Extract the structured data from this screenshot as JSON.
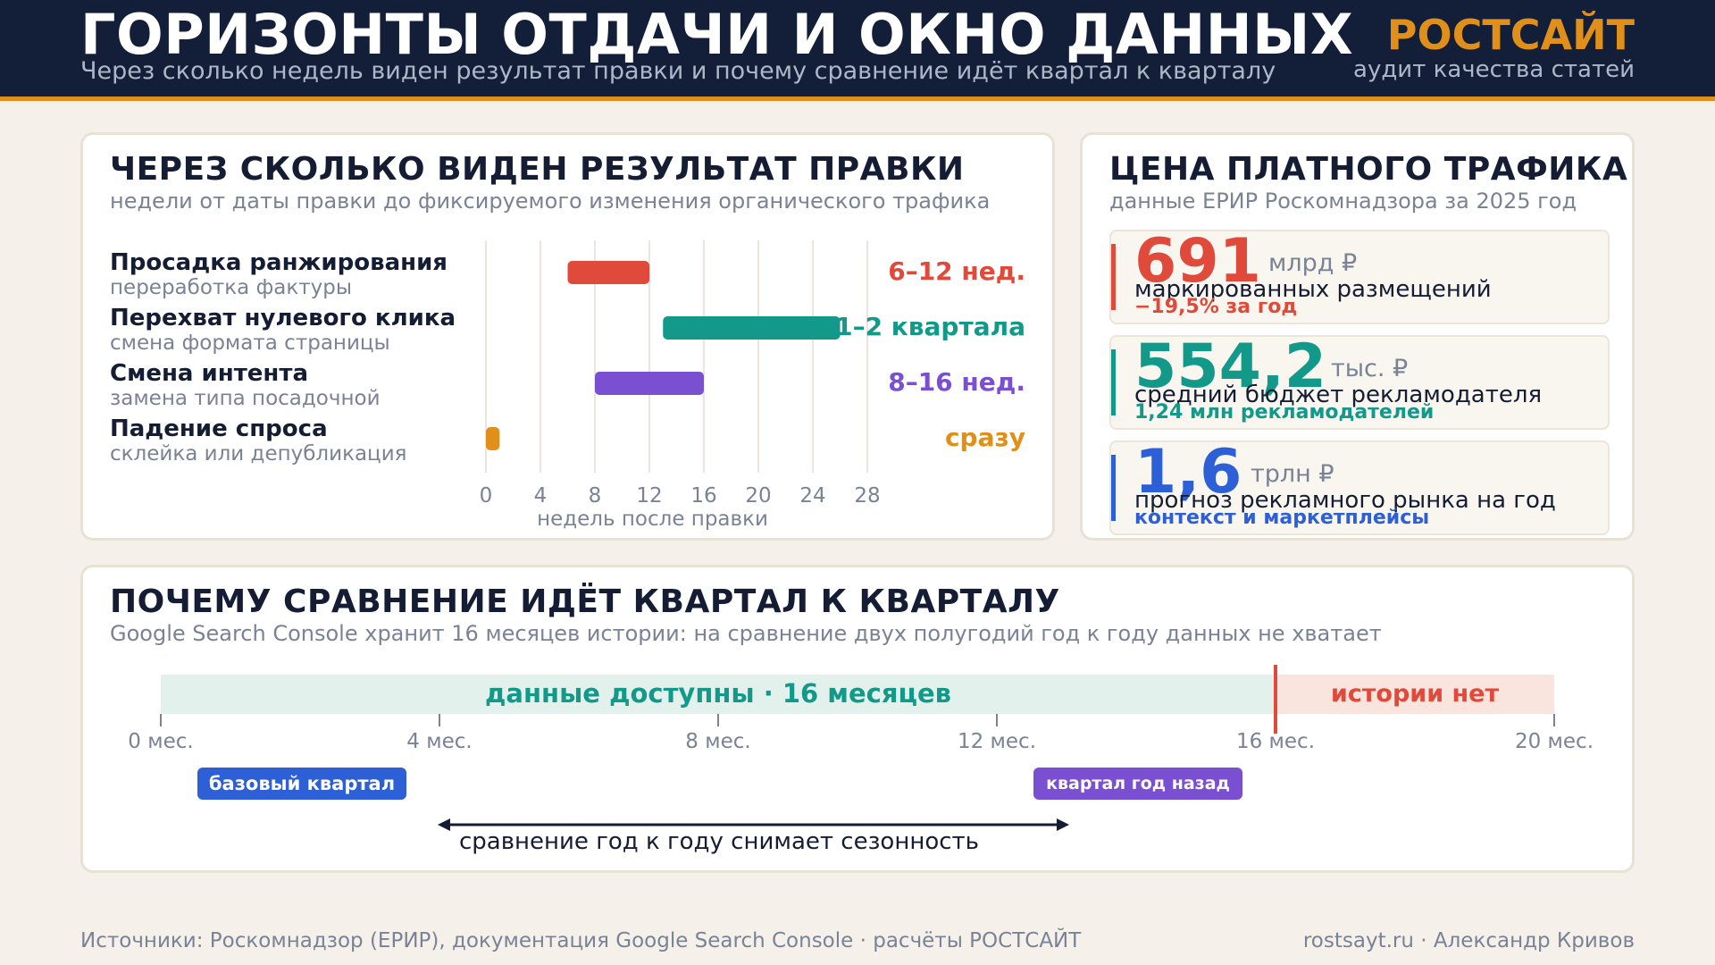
{
  "header": {
    "title": "ГОРИЗОНТЫ ОТДАЧИ И ОКНО ДАННЫХ",
    "subtitle": "Через сколько недель виден результат правки и почему сравнение идёт квартал к кварталу",
    "brand": "РОСТСАЙТ",
    "brand_sub": "аудит качества статей"
  },
  "lag_card": {
    "title": "ЧЕРЕЗ СКОЛЬКО ВИДЕН РЕЗУЛЬТАТ ПРАВКИ",
    "subtitle": "недели от даты правки до фиксируемого изменения органического трафика"
  },
  "price_card": {
    "title": "ЦЕНА ПЛАТНОГО ТРАФИКА",
    "subtitle": "данные ЕРИР Роскомнадзора за 2025 год",
    "stats": [
      {
        "value": "691",
        "unit": "млрд ₽",
        "desc": "маркированных размещений",
        "note": "−19,5% за год",
        "color": "#e04a3a"
      },
      {
        "value": "554,2",
        "unit": "тыс. ₽",
        "desc": "средний бюджет рекламодателя",
        "note": "1,24 млн рекламодателей",
        "color": "#12998a"
      },
      {
        "value": "1,6",
        "unit": "трлн ₽",
        "desc": "прогноз рекламного рынка на год",
        "note": "контекст и маркетплейсы",
        "color": "#2d5fd6"
      }
    ]
  },
  "quarter_card": {
    "title": "ПОЧЕМУ СРАВНЕНИЕ ИДЁТ КВАРТАЛ К КВАРТАЛУ",
    "subtitle": "Google Search Console хранит 16 месяцев истории: на сравнение двух полугодий год к году данных не хватает",
    "available_label": "данные доступны · 16 месяцев",
    "none_label": "истории нет",
    "ticks": [
      "0 мес.",
      "4 мес.",
      "8 мес.",
      "12 мес.",
      "16 мес.",
      "20 мес."
    ],
    "badge_base": "базовый квартал",
    "badge_prev": "квартал год назад",
    "caption": "сравнение год к году снимает сезонность",
    "color_available": "#12998a",
    "color_none": "#e04a3a",
    "color_base": "#2d5fd6",
    "color_prev": "#7b4fd1"
  },
  "chart_data": [
    {
      "type": "bar",
      "orientation": "horizontal-range",
      "xlabel": "недель после правки",
      "xlim": [
        0,
        28
      ],
      "xticks": [
        0,
        4,
        8,
        12,
        16,
        20,
        24,
        28
      ],
      "grid": true,
      "rows": [
        {
          "label": "Просадка ранжирования",
          "sublabel": "переработка фактуры",
          "start": 6,
          "end": 12,
          "value_label": "6–12 нед.",
          "color": "#e04a3a"
        },
        {
          "label": "Перехват нулевого клика",
          "sublabel": "смена формата страницы",
          "start": 13,
          "end": 26,
          "value_label": "1–2 квартала",
          "color": "#12998a"
        },
        {
          "label": "Смена интента",
          "sublabel": "замена типа посадочной",
          "start": 8,
          "end": 16,
          "value_label": "8–16 нед.",
          "color": "#7b4fd1"
        },
        {
          "label": "Падение спроса",
          "sublabel": "склейка или депубликация",
          "start": 0,
          "end": 1,
          "value_label": "сразу",
          "color": "#e0901a"
        }
      ]
    },
    {
      "type": "bar",
      "orientation": "timeline",
      "xlim": [
        0,
        20
      ],
      "x_unit": "мес.",
      "segments": [
        {
          "label": "данные доступны · 16 месяцев",
          "start": 0,
          "end": 16
        },
        {
          "label": "истории нет",
          "start": 16,
          "end": 20
        }
      ],
      "markers": [
        {
          "label": "базовый квартал",
          "start": 1,
          "end": 4
        },
        {
          "label": "квартал год назад",
          "start": 13,
          "end": 16
        }
      ]
    }
  ],
  "footer": {
    "sources": "Источники: Роскомнадзор (ЕРИР), документация Google Search Console · расчёты РОСТСАЙТ",
    "author": "rostsayt.ru · Александр Кривов"
  }
}
